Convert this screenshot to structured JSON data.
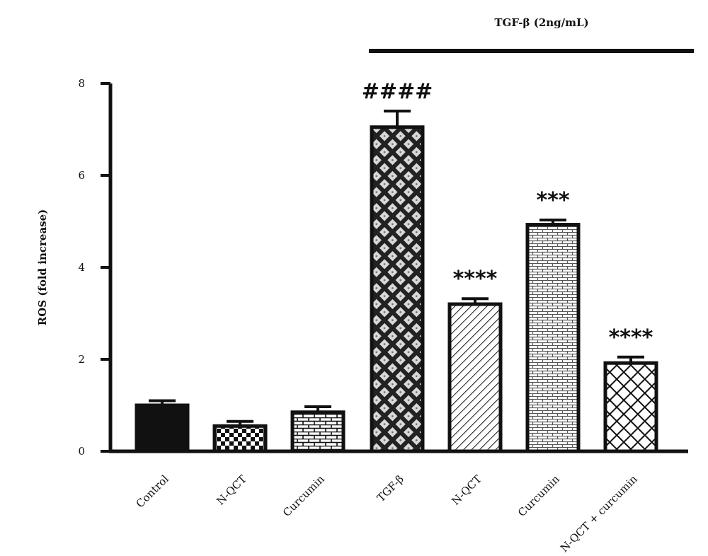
{
  "chart_data": {
    "type": "bar",
    "categories": [
      "Control",
      "N-QCT",
      "Curcumin",
      "TGF-β",
      "N-QCT",
      "Curcumin",
      "N-QCT + curcumin"
    ],
    "values": [
      1.0,
      0.55,
      0.85,
      7.05,
      3.2,
      4.93,
      1.92
    ],
    "errors": [
      0.1,
      0.1,
      0.12,
      0.35,
      0.12,
      0.1,
      0.13
    ],
    "significance": [
      "",
      "",
      "",
      "####",
      "****",
      "***",
      "****"
    ],
    "ylabel": "ROS (fold increase)",
    "xlabel": "",
    "ylim": [
      0,
      8
    ],
    "yticks": [
      0,
      2,
      4,
      6,
      8
    ],
    "group_label": "TGF-β (2ng/mL)",
    "bar_patterns": [
      "solid",
      "checker",
      "brick",
      "diamond-dotted",
      "diagonal",
      "brick-fine",
      "crosshatch"
    ]
  }
}
